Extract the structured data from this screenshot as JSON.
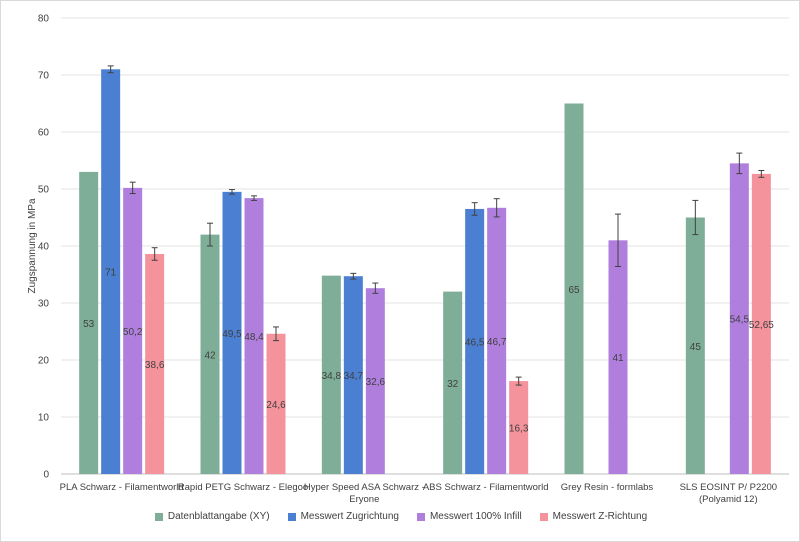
{
  "chart_data": {
    "type": "bar",
    "ylabel": "Zugspannung in MPa",
    "ylim": [
      0,
      80
    ],
    "yticks": [
      "0",
      "10",
      "20",
      "30",
      "40",
      "50",
      "60",
      "70",
      "80"
    ],
    "grid": "horizontal",
    "legend_position": "bottom",
    "categories": [
      [
        "PLA Schwarz - Filamentworld"
      ],
      [
        "Rapid PETG Schwarz - Elegoo"
      ],
      [
        "Hyper Speed ASA Schwarz -",
        "Eryone"
      ],
      [
        "ABS Schwarz - Filamentworld"
      ],
      [
        "Grey Resin - formlabs"
      ],
      [
        "SLS EOSINT P/ P2200",
        "(Polyamid 12)"
      ]
    ],
    "series": [
      {
        "name": "Datenblattangabe (XY)",
        "color": "#7fae98",
        "values": [
          53,
          42,
          34.8,
          32,
          65,
          45
        ],
        "labels": [
          "53",
          "42",
          "34,8",
          "32",
          "65",
          "45"
        ],
        "errors": [
          null,
          2,
          null,
          null,
          null,
          3
        ]
      },
      {
        "name": "Messwert Zugrichtung",
        "color": "#4a7fd1",
        "values": [
          71,
          49.5,
          34.7,
          46.5,
          null,
          null
        ],
        "labels": [
          "71",
          "49,5",
          "34,7",
          "46,5",
          "",
          ""
        ],
        "errors": [
          0.6,
          0.4,
          0.5,
          1.1,
          null,
          null
        ]
      },
      {
        "name": "Messwert 100% Infill",
        "color": "#b07fde",
        "values": [
          50.2,
          48.4,
          32.6,
          46.7,
          41,
          54.5
        ],
        "labels": [
          "50,2",
          "48,4",
          "32,6",
          "46,7",
          "41",
          "54,5"
        ],
        "errors": [
          1,
          0.4,
          0.9,
          1.6,
          4.6,
          1.8
        ]
      },
      {
        "name": "Messwert Z-Richtung",
        "color": "#f4939b",
        "values": [
          38.6,
          24.6,
          null,
          16.3,
          null,
          52.65
        ],
        "labels": [
          "38,6",
          "24,6",
          "",
          "16,3",
          "",
          "52,65"
        ],
        "errors": [
          1.1,
          1.2,
          null,
          0.7,
          null,
          0.6
        ]
      }
    ]
  }
}
